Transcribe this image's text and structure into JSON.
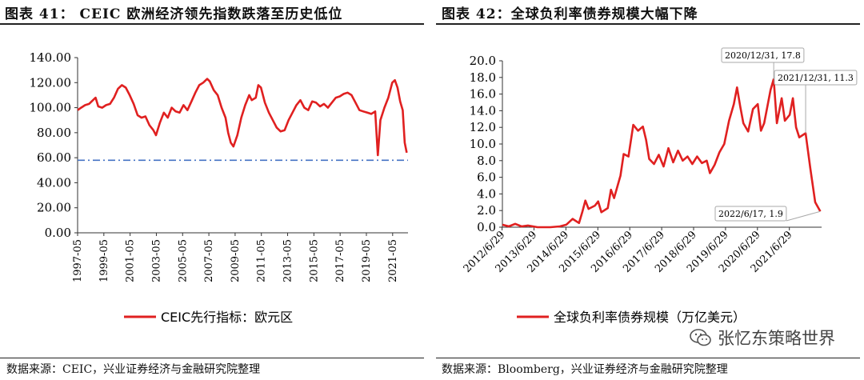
{
  "left": {
    "fig_title": "图表 41：  CEIC 欧洲经济领先指数跌落至历史低位",
    "source": "数据来源：CEIC，兴业证券经济与金融研究院整理",
    "chart_data": {
      "type": "line",
      "title": "",
      "ylim": [
        0,
        140
      ],
      "y_ticks": [
        "0.00",
        "20.00",
        "40.00",
        "60.00",
        "80.00",
        "100.00",
        "120.00",
        "140.00"
      ],
      "x_range": [
        1997.33,
        2022.5
      ],
      "x_ticks": [
        {
          "label": "1997-05",
          "x": 1997.33
        },
        {
          "label": "1999-05",
          "x": 1999.33
        },
        {
          "label": "2001-05",
          "x": 2001.33
        },
        {
          "label": "2003-05",
          "x": 2003.33
        },
        {
          "label": "2005-05",
          "x": 2005.33
        },
        {
          "label": "2007-05",
          "x": 2007.33
        },
        {
          "label": "2009-05",
          "x": 2009.33
        },
        {
          "label": "2011-05",
          "x": 2011.33
        },
        {
          "label": "2013-05",
          "x": 2013.33
        },
        {
          "label": "2015-05",
          "x": 2015.33
        },
        {
          "label": "2017-05",
          "x": 2017.33
        },
        {
          "label": "2019-05",
          "x": 2019.33
        },
        {
          "label": "2021-05",
          "x": 2021.33
        }
      ],
      "series": [
        {
          "name": "CEIC先行指标：欧元区",
          "color": "#e02020",
          "points": [
            [
              1997.33,
              98
            ],
            [
              1997.6,
              100
            ],
            [
              1997.9,
              102
            ],
            [
              1998.2,
              103
            ],
            [
              1998.5,
              106
            ],
            [
              1998.7,
              108
            ],
            [
              1998.9,
              101
            ],
            [
              1999.2,
              100
            ],
            [
              1999.5,
              102
            ],
            [
              1999.8,
              103
            ],
            [
              2000.1,
              108
            ],
            [
              2000.4,
              115
            ],
            [
              2000.7,
              118
            ],
            [
              2001.0,
              116
            ],
            [
              2001.3,
              110
            ],
            [
              2001.6,
              103
            ],
            [
              2001.9,
              94
            ],
            [
              2002.2,
              92
            ],
            [
              2002.5,
              93
            ],
            [
              2002.8,
              86
            ],
            [
              2003.1,
              82
            ],
            [
              2003.3,
              78
            ],
            [
              2003.6,
              88
            ],
            [
              2003.9,
              96
            ],
            [
              2004.2,
              92
            ],
            [
              2004.5,
              100
            ],
            [
              2004.8,
              97
            ],
            [
              2005.1,
              96
            ],
            [
              2005.4,
              102
            ],
            [
              2005.7,
              98
            ],
            [
              2006.0,
              105
            ],
            [
              2006.3,
              112
            ],
            [
              2006.6,
              118
            ],
            [
              2006.9,
              120
            ],
            [
              2007.2,
              123
            ],
            [
              2007.4,
              121
            ],
            [
              2007.7,
              114
            ],
            [
              2008.0,
              110
            ],
            [
              2008.3,
              100
            ],
            [
              2008.6,
              92
            ],
            [
              2008.8,
              80
            ],
            [
              2009.0,
              72
            ],
            [
              2009.2,
              69
            ],
            [
              2009.5,
              78
            ],
            [
              2009.8,
              92
            ],
            [
              2010.1,
              102
            ],
            [
              2010.4,
              110
            ],
            [
              2010.6,
              106
            ],
            [
              2010.9,
              108
            ],
            [
              2011.1,
              118
            ],
            [
              2011.3,
              116
            ],
            [
              2011.6,
              104
            ],
            [
              2011.9,
              96
            ],
            [
              2012.2,
              90
            ],
            [
              2012.5,
              84
            ],
            [
              2012.8,
              81
            ],
            [
              2013.1,
              82
            ],
            [
              2013.4,
              90
            ],
            [
              2013.7,
              96
            ],
            [
              2014.0,
              102
            ],
            [
              2014.3,
              106
            ],
            [
              2014.6,
              100
            ],
            [
              2014.9,
              98
            ],
            [
              2015.2,
              105
            ],
            [
              2015.5,
              104
            ],
            [
              2015.8,
              101
            ],
            [
              2016.1,
              103
            ],
            [
              2016.4,
              100
            ],
            [
              2016.7,
              104
            ],
            [
              2017.0,
              108
            ],
            [
              2017.3,
              109
            ],
            [
              2017.6,
              111
            ],
            [
              2017.9,
              112
            ],
            [
              2018.2,
              110
            ],
            [
              2018.5,
              104
            ],
            [
              2018.8,
              98
            ],
            [
              2019.1,
              97
            ],
            [
              2019.4,
              96
            ],
            [
              2019.7,
              95
            ],
            [
              2020.0,
              97
            ],
            [
              2020.2,
              62
            ],
            [
              2020.4,
              90
            ],
            [
              2020.7,
              100
            ],
            [
              2021.0,
              108
            ],
            [
              2021.3,
              120
            ],
            [
              2021.5,
              122
            ],
            [
              2021.7,
              116
            ],
            [
              2021.9,
              105
            ],
            [
              2022.1,
              98
            ],
            [
              2022.25,
              72
            ],
            [
              2022.4,
              64
            ]
          ]
        },
        {
          "name": "",
          "color": "#4472c4",
          "dashed": true,
          "points": [
            [
              1997.33,
              58
            ],
            [
              2022.5,
              58
            ]
          ]
        }
      ],
      "legend": "bottom"
    }
  },
  "right": {
    "fig_title": "图表 42：全球负利率债券规模大幅下降",
    "source": "数据来源：Bloomberg，兴业证券经济与金融研究院整理",
    "chart_data": {
      "type": "line",
      "title": "",
      "ylim": [
        0,
        20
      ],
      "y_ticks": [
        "0.0",
        "2.0",
        "4.0",
        "6.0",
        "8.0",
        "10.0",
        "12.0",
        "14.0",
        "16.0",
        "18.0",
        "20.0"
      ],
      "x_range": [
        2012.5,
        2022.5
      ],
      "x_ticks": [
        {
          "label": "2012/6/29",
          "x": 2012.49
        },
        {
          "label": "2013/6/29",
          "x": 2013.49
        },
        {
          "label": "2014/6/29",
          "x": 2014.49
        },
        {
          "label": "2015/6/29",
          "x": 2015.49
        },
        {
          "label": "2016/6/29",
          "x": 2016.49
        },
        {
          "label": "2017/6/29",
          "x": 2017.49
        },
        {
          "label": "2018/6/29",
          "x": 2018.49
        },
        {
          "label": "2019/6/29",
          "x": 2019.49
        },
        {
          "label": "2020/6/29",
          "x": 2020.49
        },
        {
          "label": "2021/6/29",
          "x": 2021.49
        }
      ],
      "series": [
        {
          "name": "全球负利率债券规模（万亿美元）",
          "color": "#e02020",
          "points": [
            [
              2012.5,
              0.3
            ],
            [
              2012.7,
              0.1
            ],
            [
              2012.9,
              0.4
            ],
            [
              2013.1,
              0.1
            ],
            [
              2013.3,
              0.2
            ],
            [
              2013.6,
              0
            ],
            [
              2014.0,
              0
            ],
            [
              2014.3,
              0.1
            ],
            [
              2014.5,
              0.3
            ],
            [
              2014.7,
              1.0
            ],
            [
              2014.9,
              0.5
            ],
            [
              2015.0,
              1.8
            ],
            [
              2015.1,
              3.2
            ],
            [
              2015.2,
              2.2
            ],
            [
              2015.4,
              2.6
            ],
            [
              2015.5,
              3.1
            ],
            [
              2015.6,
              1.8
            ],
            [
              2015.8,
              2.3
            ],
            [
              2015.9,
              4.5
            ],
            [
              2016.0,
              3.5
            ],
            [
              2016.2,
              6.2
            ],
            [
              2016.3,
              8.8
            ],
            [
              2016.45,
              8.5
            ],
            [
              2016.6,
              12.3
            ],
            [
              2016.75,
              11.6
            ],
            [
              2016.9,
              12.1
            ],
            [
              2017.0,
              10.5
            ],
            [
              2017.1,
              8.2
            ],
            [
              2017.25,
              7.6
            ],
            [
              2017.4,
              8.7
            ],
            [
              2017.55,
              7.3
            ],
            [
              2017.7,
              9.5
            ],
            [
              2017.85,
              7.8
            ],
            [
              2018.0,
              9.2
            ],
            [
              2018.15,
              8.0
            ],
            [
              2018.3,
              8.5
            ],
            [
              2018.45,
              7.6
            ],
            [
              2018.6,
              8.5
            ],
            [
              2018.75,
              7.7
            ],
            [
              2018.9,
              8.0
            ],
            [
              2019.0,
              6.5
            ],
            [
              2019.15,
              7.5
            ],
            [
              2019.3,
              9.0
            ],
            [
              2019.45,
              10.0
            ],
            [
              2019.6,
              12.8
            ],
            [
              2019.75,
              14.8
            ],
            [
              2019.85,
              16.8
            ],
            [
              2019.95,
              14.5
            ],
            [
              2020.05,
              12.5
            ],
            [
              2020.2,
              11.5
            ],
            [
              2020.35,
              14.2
            ],
            [
              2020.5,
              14.8
            ],
            [
              2020.6,
              11.6
            ],
            [
              2020.7,
              12.5
            ],
            [
              2020.8,
              14.5
            ],
            [
              2020.9,
              16.5
            ],
            [
              2021.0,
              17.8
            ],
            [
              2021.1,
              12.5
            ],
            [
              2021.25,
              15.5
            ],
            [
              2021.35,
              12.8
            ],
            [
              2021.5,
              13.5
            ],
            [
              2021.6,
              15.5
            ],
            [
              2021.7,
              12.0
            ],
            [
              2021.8,
              10.8
            ],
            [
              2022.0,
              11.3
            ],
            [
              2022.15,
              7.0
            ],
            [
              2022.3,
              3.0
            ],
            [
              2022.46,
              1.9
            ]
          ]
        }
      ],
      "annotations": [
        {
          "label": "2020/12/31, 17.8",
          "x": 2021.0,
          "y": 17.8
        },
        {
          "label": "2021/12/31, 11.3",
          "x": 2022.0,
          "y": 11.3
        },
        {
          "label": "2022/6/17, 1.9",
          "x": 2022.46,
          "y": 1.9
        }
      ],
      "legend": "bottom"
    }
  },
  "watermark": "张忆东策略世界"
}
